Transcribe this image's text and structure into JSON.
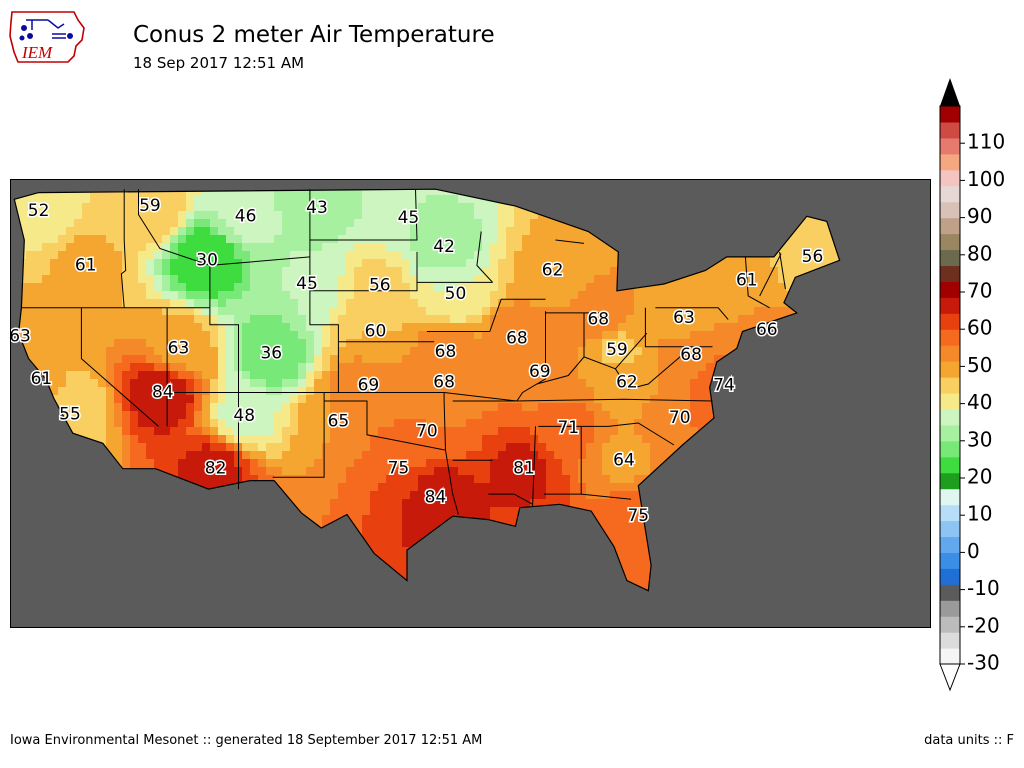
{
  "header": {
    "title": "Conus 2 meter Air Temperature",
    "subtitle": "18 Sep 2017 12:51 AM",
    "logo_text": "IEM"
  },
  "footer": {
    "left": "Iowa Environmental Mesonet :: generated 18 September 2017 12:51 AM",
    "right": "data units :: F"
  },
  "colorbar": {
    "ticks": [
      "110",
      "100",
      "90",
      "80",
      "70",
      "60",
      "50",
      "40",
      "30",
      "20",
      "10",
      "0",
      "-10",
      "-20",
      "-30"
    ],
    "min": -30,
    "max": 120,
    "step": 5,
    "colors": [
      "#f5f5f5",
      "#dcdcdc",
      "#bcbcbc",
      "#9a9a9a",
      "#5b5b5b",
      "#1f6fd6",
      "#3b8ee6",
      "#62a8ef",
      "#8cc4f4",
      "#b7def8",
      "#e0f6f0",
      "#1e9e1e",
      "#3fdc3f",
      "#78e878",
      "#a6f0a0",
      "#cdf5c0",
      "#f5e98a",
      "#f8cf60",
      "#f5a630",
      "#f5892a",
      "#f56a1e",
      "#e8400e",
      "#c81a0a",
      "#a00000",
      "#6e2f1e",
      "#6b6a4e",
      "#9a8660",
      "#bfa18a",
      "#d8c2b8",
      "#e6d8d4",
      "#f3c4c0",
      "#f5a880",
      "#e77a6e",
      "#d04a44",
      "#a00000"
    ]
  },
  "map_values": [
    {
      "label": "52",
      "lon": -123.0,
      "lat": 47.7
    },
    {
      "label": "59",
      "lon": -115.2,
      "lat": 48.0
    },
    {
      "label": "46",
      "lon": -108.5,
      "lat": 47.4
    },
    {
      "label": "43",
      "lon": -103.5,
      "lat": 47.9
    },
    {
      "label": "45",
      "lon": -97.1,
      "lat": 47.3
    },
    {
      "label": "42",
      "lon": -94.6,
      "lat": 45.6
    },
    {
      "label": "62",
      "lon": -87.0,
      "lat": 44.2
    },
    {
      "label": "56",
      "lon": -68.8,
      "lat": 45.0
    },
    {
      "label": "61",
      "lon": -119.7,
      "lat": 44.5
    },
    {
      "label": "30",
      "lon": -111.2,
      "lat": 44.8
    },
    {
      "label": "45",
      "lon": -104.2,
      "lat": 43.4
    },
    {
      "label": "56",
      "lon": -99.1,
      "lat": 43.3
    },
    {
      "label": "50",
      "lon": -93.8,
      "lat": 42.8
    },
    {
      "label": "61",
      "lon": -73.4,
      "lat": 43.6
    },
    {
      "label": "63",
      "lon": -77.8,
      "lat": 41.4
    },
    {
      "label": "68",
      "lon": -83.8,
      "lat": 41.3
    },
    {
      "label": "66",
      "lon": -72.0,
      "lat": 40.7
    },
    {
      "label": "63",
      "lon": -124.3,
      "lat": 40.3
    },
    {
      "label": "63",
      "lon": -113.2,
      "lat": 39.6
    },
    {
      "label": "36",
      "lon": -106.7,
      "lat": 39.3
    },
    {
      "label": "60",
      "lon": -99.4,
      "lat": 40.6
    },
    {
      "label": "68",
      "lon": -94.5,
      "lat": 39.4
    },
    {
      "label": "68",
      "lon": -89.5,
      "lat": 40.2
    },
    {
      "label": "59",
      "lon": -82.5,
      "lat": 39.5
    },
    {
      "label": "68",
      "lon": -77.3,
      "lat": 39.2
    },
    {
      "label": "61",
      "lon": -122.8,
      "lat": 37.8
    },
    {
      "label": "84",
      "lon": -114.3,
      "lat": 37.0
    },
    {
      "label": "69",
      "lon": -99.9,
      "lat": 37.4
    },
    {
      "label": "68",
      "lon": -94.6,
      "lat": 37.6
    },
    {
      "label": "69",
      "lon": -87.9,
      "lat": 38.2
    },
    {
      "label": "62",
      "lon": -81.8,
      "lat": 37.6
    },
    {
      "label": "74",
      "lon": -75.0,
      "lat": 37.4
    },
    {
      "label": "55",
      "lon": -120.8,
      "lat": 35.7
    },
    {
      "label": "48",
      "lon": -108.6,
      "lat": 35.6
    },
    {
      "label": "65",
      "lon": -102.0,
      "lat": 35.3
    },
    {
      "label": "70",
      "lon": -95.8,
      "lat": 34.7
    },
    {
      "label": "71",
      "lon": -85.9,
      "lat": 34.9
    },
    {
      "label": "70",
      "lon": -78.1,
      "lat": 35.5
    },
    {
      "label": "82",
      "lon": -110.6,
      "lat": 32.5
    },
    {
      "label": "75",
      "lon": -97.8,
      "lat": 32.5
    },
    {
      "label": "81",
      "lon": -89.0,
      "lat": 32.5
    },
    {
      "label": "64",
      "lon": -82.0,
      "lat": 33.0
    },
    {
      "label": "84",
      "lon": -95.2,
      "lat": 30.8
    },
    {
      "label": "75",
      "lon": -81.0,
      "lat": 29.7
    }
  ]
}
